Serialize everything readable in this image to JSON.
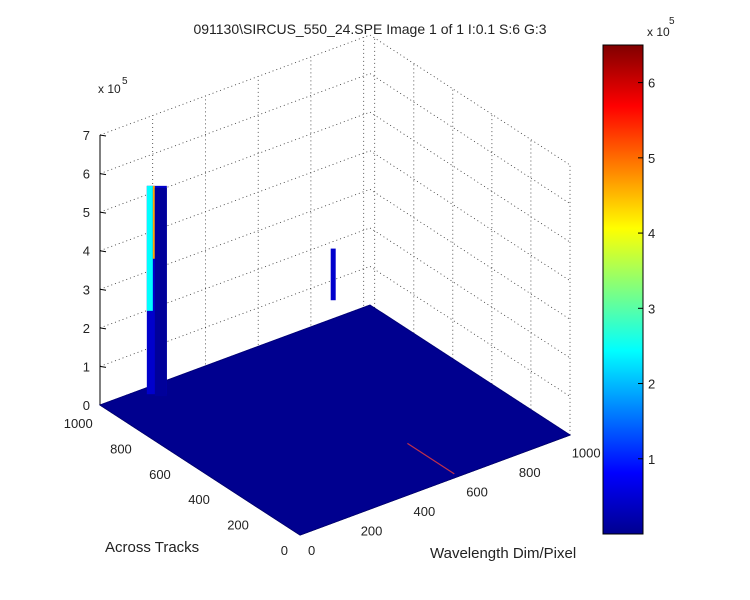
{
  "chart_data": {
    "type": "surface",
    "title": "091130\\SIRCUS_550_24.SPE  Image 1 of 1  I:0.1  S:6  G:3",
    "xlabel": "Wavelength Dim/Pixel",
    "ylabel": "Across Tracks",
    "zlabel": "",
    "z_multiplier_label": "x 10",
    "z_multiplier_exponent": "5",
    "xlim": [
      0,
      1024
    ],
    "ylim": [
      0,
      1024
    ],
    "zlim": [
      0,
      700000
    ],
    "x_ticks": [
      "0",
      "200",
      "400",
      "600",
      "800",
      "1000"
    ],
    "y_ticks": [
      "0",
      "200",
      "400",
      "600",
      "800",
      "1000"
    ],
    "z_ticks": [
      "0",
      "1",
      "2",
      "3",
      "4",
      "5",
      "6",
      "7"
    ],
    "grid": true,
    "colormap": "jet",
    "colorbar": {
      "range": [
        0,
        650000
      ],
      "ticks": [
        "1",
        "2",
        "3",
        "4",
        "5",
        "6"
      ],
      "multiplier_label": "x 10",
      "multiplier_exponent": "5"
    },
    "baseline_z": 0,
    "features": [
      {
        "x": 20,
        "y_range": [
          700,
          820
        ],
        "z_peak": 650000,
        "note": "tall narrow peak"
      },
      {
        "x": 600,
        "y_range": [
          600,
          680
        ],
        "z_peak": 380000,
        "note": "thin spike"
      },
      {
        "x": 600,
        "y_range": [
          20,
          260
        ],
        "z_peak": 0,
        "note": "faint line on base"
      }
    ],
    "base_color": "#00008f",
    "peak_color_top": "#00ffff",
    "peak_accent": "#ffa500"
  }
}
